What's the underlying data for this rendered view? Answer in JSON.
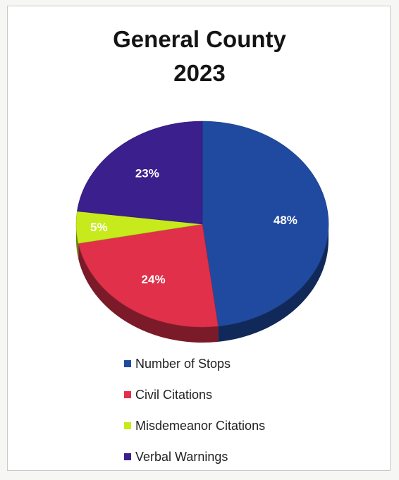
{
  "chart_data": {
    "type": "pie",
    "title": [
      "General County",
      "2023"
    ],
    "slices": [
      {
        "label": "Number of Stops",
        "value": 48,
        "value_label": "48%",
        "color": "#1f4aa0"
      },
      {
        "label": "Civil Citations",
        "value": 24,
        "value_label": "24%",
        "color": "#e0304a"
      },
      {
        "label": "Misdemeanor Citations",
        "value": 5,
        "value_label": "5%",
        "color": "#c6ea1c"
      },
      {
        "label": "Verbal Warnings",
        "value": 23,
        "value_label": "23%",
        "color": "#3b1f8c"
      }
    ],
    "legend_position": "bottom",
    "style": "3d"
  }
}
